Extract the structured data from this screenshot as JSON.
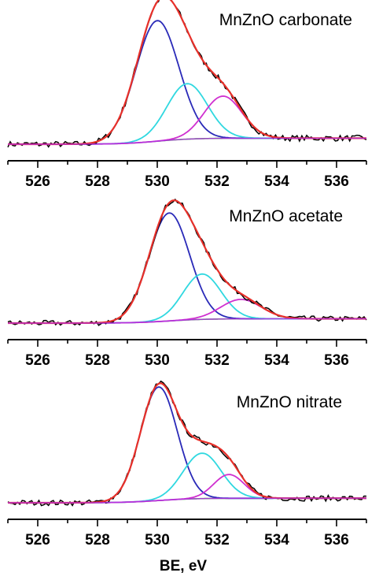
{
  "figure": {
    "xlabel": "BE, eV"
  },
  "chart_data": [
    {
      "type": "line",
      "title": "MnZnO carbonate",
      "xlabel": "BE, eV",
      "xlim": [
        525,
        537
      ],
      "ticks": [
        526,
        528,
        530,
        532,
        534,
        536
      ],
      "tick_labels": [
        "526",
        "528",
        "530",
        "532",
        "534",
        "536"
      ],
      "colors": {
        "experimental": "#000000",
        "envelope": "#e8302a",
        "peak1": "#2a2ab8",
        "peak2": "#30d8e0",
        "peak3": "#d030d0",
        "background": "#30c030",
        "baseline": "#b030e0"
      },
      "peaks": [
        {
          "name": "peak1",
          "center": 530.0,
          "height": 1.0,
          "fwhm": 1.7
        },
        {
          "name": "peak2",
          "center": 531.0,
          "height": 0.46,
          "fwhm": 1.6
        },
        {
          "name": "peak3",
          "center": 532.2,
          "height": 0.35,
          "fwhm": 1.5
        }
      ],
      "background_rise": 0.05,
      "noise": 0.025
    },
    {
      "type": "line",
      "title": "MnZnO acetate",
      "xlabel": "BE, eV",
      "xlim": [
        525,
        537
      ],
      "ticks": [
        526,
        528,
        530,
        532,
        534,
        536
      ],
      "tick_labels": [
        "526",
        "528",
        "530",
        "532",
        "534",
        "536"
      ],
      "colors": {
        "experimental": "#000000",
        "envelope": "#e8302a",
        "peak1": "#2a2ab8",
        "peak2": "#30d8e0",
        "peak3": "#d030d0",
        "background": "#30c030",
        "baseline": "#b030e0"
      },
      "peaks": [
        {
          "name": "peak1",
          "center": 530.4,
          "height": 1.0,
          "fwhm": 1.6
        },
        {
          "name": "peak2",
          "center": 531.5,
          "height": 0.42,
          "fwhm": 1.5
        },
        {
          "name": "peak3",
          "center": 532.8,
          "height": 0.18,
          "fwhm": 1.6
        }
      ],
      "background_rise": 0.04,
      "noise": 0.025
    },
    {
      "type": "line",
      "title": "MnZnO nitrate",
      "xlabel": "BE, eV",
      "xlim": [
        525,
        537
      ],
      "ticks": [
        526,
        528,
        530,
        532,
        534,
        536
      ],
      "tick_labels": [
        "526",
        "528",
        "530",
        "532",
        "534",
        "536"
      ],
      "colors": {
        "experimental": "#000000",
        "envelope": "#e8302a",
        "peak1": "#2a2ab8",
        "peak2": "#30d8e0",
        "peak3": "#d030d0",
        "background": "#30c030",
        "baseline": "#b030e0"
      },
      "peaks": [
        {
          "name": "peak1",
          "center": 530.05,
          "height": 1.0,
          "fwhm": 1.45
        },
        {
          "name": "peak2",
          "center": 531.5,
          "height": 0.4,
          "fwhm": 1.5
        },
        {
          "name": "peak3",
          "center": 532.4,
          "height": 0.21,
          "fwhm": 1.2
        }
      ],
      "background_rise": 0.04,
      "noise": 0.025
    }
  ]
}
